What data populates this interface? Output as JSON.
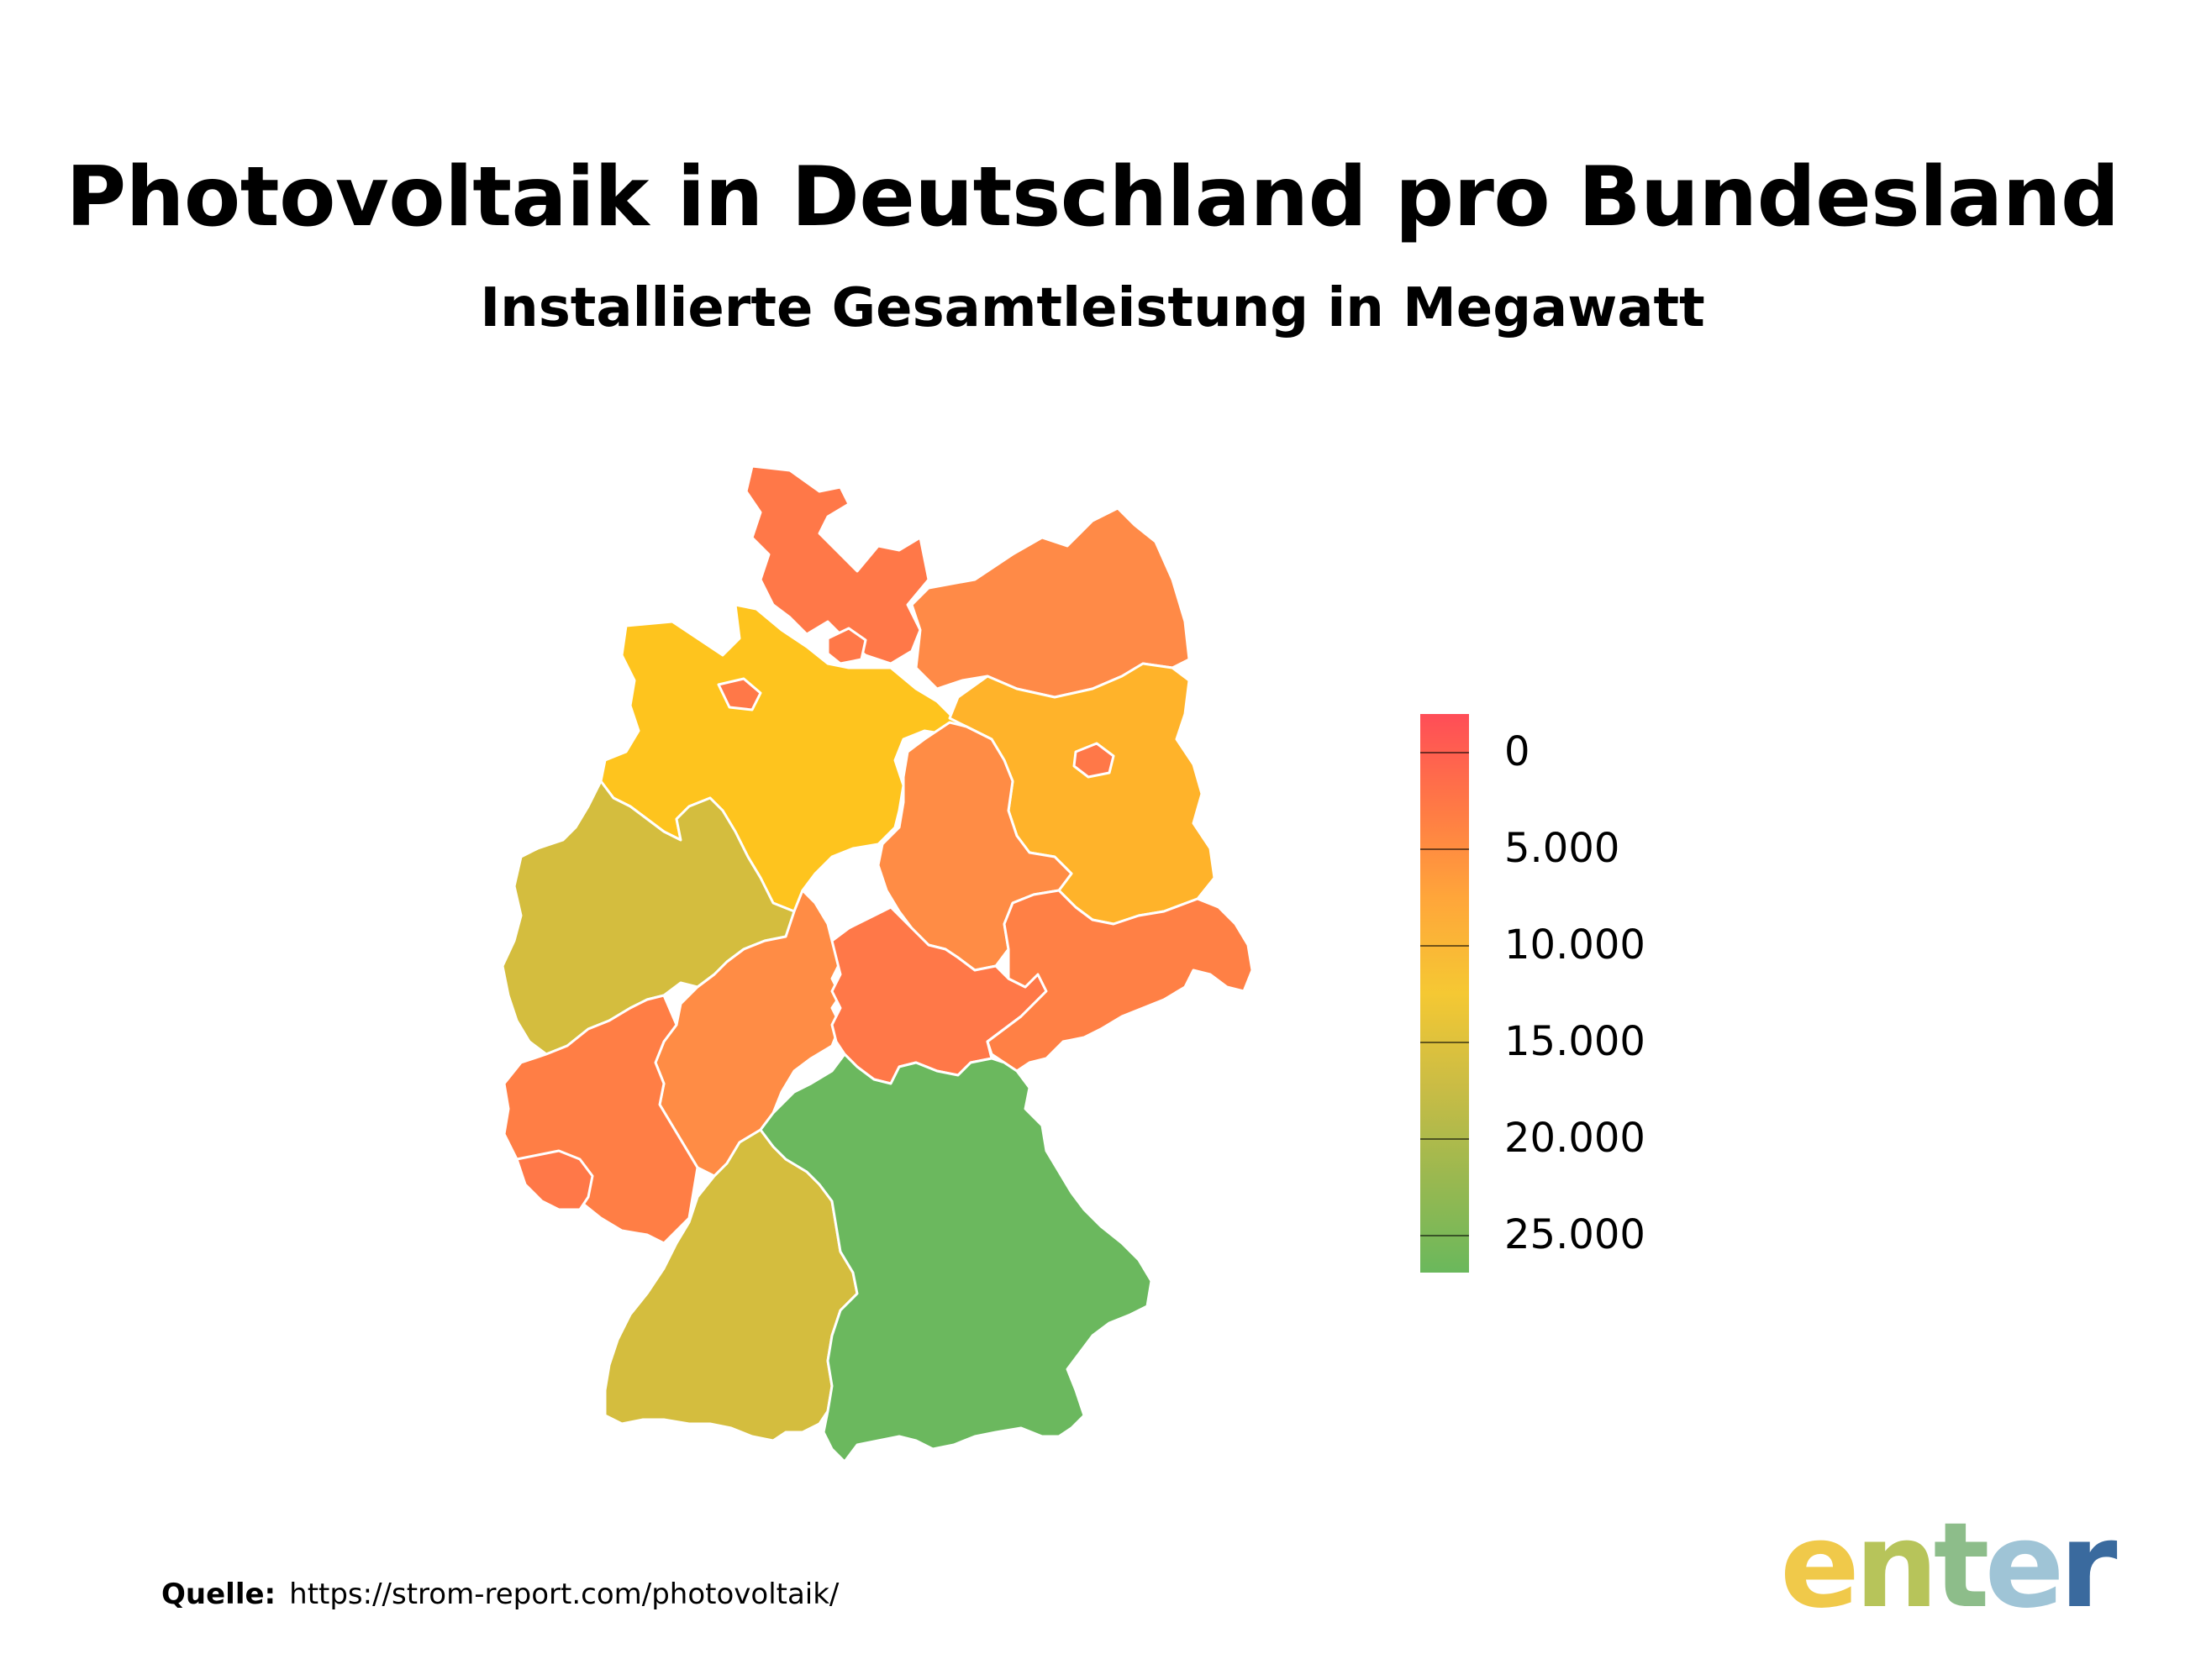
{
  "title": "Photovoltaik in Deutschland pro Bundesland",
  "subtitle": "Installierte Gesamtleistung in Megawatt",
  "legend": {
    "ticks": [
      {
        "label": "0",
        "value": 0
      },
      {
        "label": "5.000",
        "value": 5000
      },
      {
        "label": "10.000",
        "value": 10000
      },
      {
        "label": "15.000",
        "value": 15000
      },
      {
        "label": "20.000",
        "value": 20000
      },
      {
        "label": "25.000",
        "value": 25000
      }
    ],
    "colors": [
      "#ff4d57",
      "#ff7a45",
      "#ffa63a",
      "#f5c833",
      "#c9bc45",
      "#9ab850",
      "#6ab85c"
    ]
  },
  "states": {
    "schleswig-holstein": {
      "color": "#ff7848"
    },
    "hamburg": {
      "color": "#ff7848"
    },
    "mecklenburg-vorpommern": {
      "color": "#ff8a47"
    },
    "niedersachsen": {
      "color": "#fec41e"
    },
    "bremen": {
      "color": "#ff7848"
    },
    "brandenburg": {
      "color": "#ffb32a"
    },
    "berlin": {
      "color": "#ff7848"
    },
    "sachsen-anhalt": {
      "color": "#ff8c45"
    },
    "nordrhein-westfalen": {
      "color": "#d4bd3e"
    },
    "hessen": {
      "color": "#ff8c45"
    },
    "thueringen": {
      "color": "#ff7848"
    },
    "sachsen": {
      "color": "#ff8045"
    },
    "rheinland-pfalz": {
      "color": "#ff7e45"
    },
    "saarland": {
      "color": "#ff7848"
    },
    "baden-wuerttemberg": {
      "color": "#d4bd3e"
    },
    "bayern": {
      "color": "#6bb85e"
    }
  },
  "source": {
    "label": "Quelle:",
    "url": "https://strom-report.com/photovoltaik/"
  },
  "logo": {
    "text": "enter",
    "colors": [
      "#f0c94a",
      "#b7c45a",
      "#8dbd8a",
      "#9fc4d6",
      "#3a6a9e"
    ]
  }
}
